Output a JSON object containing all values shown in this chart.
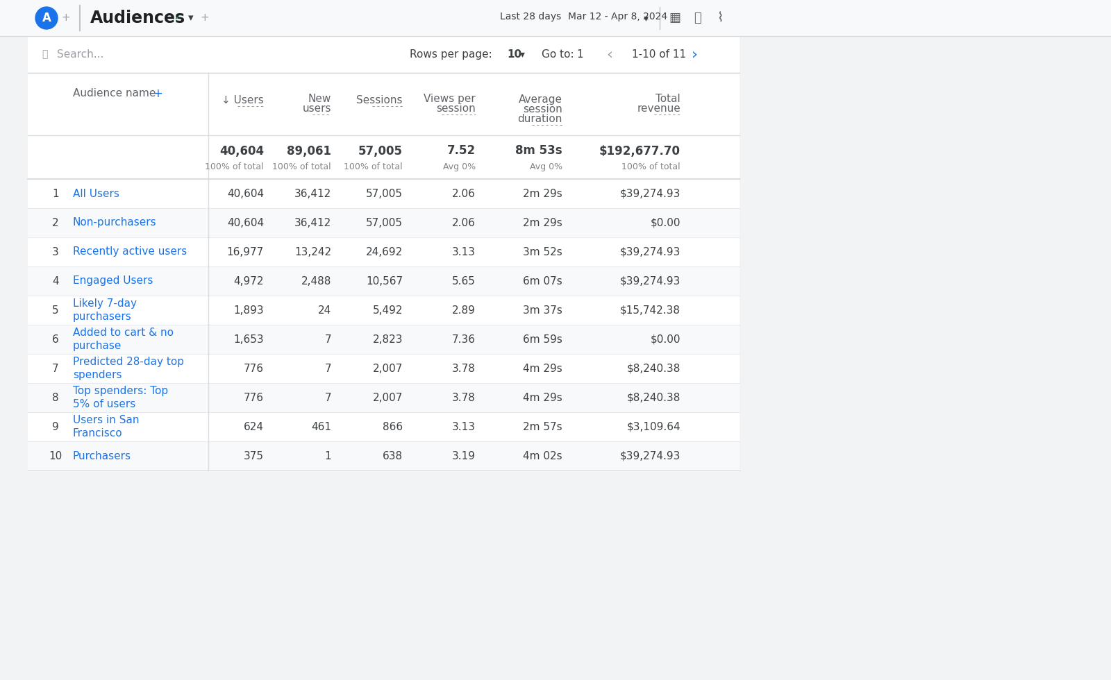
{
  "title": "Audiences",
  "date_range_left": "Last 28 days",
  "date_range_right": "Mar 12 - Apr 8, 2024",
  "search_placeholder": "Search...",
  "rows_per_page_label": "Rows per page:",
  "rows_per_page_val": "10",
  "goto_label": "Go to:",
  "goto_val": "1",
  "pagination": "1-10 of 11",
  "columns": [
    "Audience name",
    "↓ Users",
    "New\nusers",
    "Sessions",
    "Views per\nsession",
    "Average\nsession\nduration",
    "Total\nrevenue"
  ],
  "totals": {
    "users": "40,604",
    "users_sub": "100% of total",
    "new_users": "89,061",
    "new_users_sub": "100% of total",
    "sessions": "57,005",
    "sessions_sub": "100% of total",
    "views_per_session": "7.52",
    "views_per_session_sub": "Avg 0%",
    "avg_session": "8m 53s",
    "avg_session_sub": "Avg 0%",
    "total_revenue": "$192,677.70",
    "total_revenue_sub": "100% of total"
  },
  "rows": [
    {
      "num": "1",
      "name": "All Users",
      "users": "40,604",
      "new_users": "36,412",
      "sessions": "57,005",
      "views_per_session": "2.06",
      "avg_session": "2m 29s",
      "total_revenue": "$39,274.93"
    },
    {
      "num": "2",
      "name": "Non-purchasers",
      "users": "40,604",
      "new_users": "36,412",
      "sessions": "57,005",
      "views_per_session": "2.06",
      "avg_session": "2m 29s",
      "total_revenue": "$0.00"
    },
    {
      "num": "3",
      "name": "Recently active users",
      "users": "16,977",
      "new_users": "13,242",
      "sessions": "24,692",
      "views_per_session": "3.13",
      "avg_session": "3m 52s",
      "total_revenue": "$39,274.93"
    },
    {
      "num": "4",
      "name": "Engaged Users",
      "users": "4,972",
      "new_users": "2,488",
      "sessions": "10,567",
      "views_per_session": "5.65",
      "avg_session": "6m 07s",
      "total_revenue": "$39,274.93"
    },
    {
      "num": "5",
      "name": "Likely 7-day\npurchasers",
      "users": "1,893",
      "new_users": "24",
      "sessions": "5,492",
      "views_per_session": "2.89",
      "avg_session": "3m 37s",
      "total_revenue": "$15,742.38"
    },
    {
      "num": "6",
      "name": "Added to cart & no\npurchase",
      "users": "1,653",
      "new_users": "7",
      "sessions": "2,823",
      "views_per_session": "7.36",
      "avg_session": "6m 59s",
      "total_revenue": "$0.00"
    },
    {
      "num": "7",
      "name": "Predicted 28-day top\nspenders",
      "users": "776",
      "new_users": "7",
      "sessions": "2,007",
      "views_per_session": "3.78",
      "avg_session": "4m 29s",
      "total_revenue": "$8,240.38"
    },
    {
      "num": "8",
      "name": "Top spenders: Top\n5% of users",
      "users": "776",
      "new_users": "7",
      "sessions": "2,007",
      "views_per_session": "3.78",
      "avg_session": "4m 29s",
      "total_revenue": "$8,240.38"
    },
    {
      "num": "9",
      "name": "Users in San\nFrancisco",
      "users": "624",
      "new_users": "461",
      "sessions": "866",
      "views_per_session": "3.13",
      "avg_session": "2m 57s",
      "total_revenue": "$3,109.64"
    },
    {
      "num": "10",
      "name": "Purchasers",
      "users": "375",
      "new_users": "1",
      "sessions": "638",
      "views_per_session": "3.19",
      "avg_session": "4m 02s",
      "total_revenue": "$39,274.93"
    }
  ],
  "outer_bg": "#f1f3f4",
  "topbar_bg": "#f1f3f4",
  "content_bg": "#ffffff",
  "row_alt_bg": "#f8f9fa",
  "link_color": "#1a73e8",
  "text_color": "#3c4043",
  "header_text_color": "#5f6368",
  "border_color": "#dadce0",
  "title_color": "#202124",
  "accent_color": "#1a73e8",
  "avatar_bg": "#1a73e8",
  "green_check": "#34a853",
  "subtext_color": "#80868b"
}
